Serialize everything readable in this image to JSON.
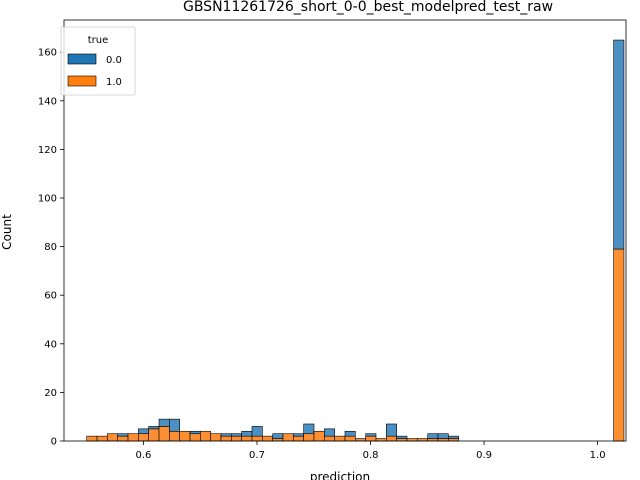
{
  "chart_data": {
    "type": "bar",
    "stacked": true,
    "title": "GBSN11261726_short_0-0_best_modelpred_test_raw",
    "xlabel": "prediction",
    "ylabel": "Count",
    "xlim": [
      0.53,
      1.025
    ],
    "ylim": [
      0,
      173.25
    ],
    "xticks": [
      0.6,
      0.7,
      0.8,
      0.9,
      1.0
    ],
    "xtick_labels": [
      "0.6",
      "0.7",
      "0.8",
      "0.9",
      "1.0"
    ],
    "yticks": [
      0,
      20,
      40,
      60,
      80,
      100,
      120,
      140,
      160
    ],
    "ytick_labels": [
      "0",
      "20",
      "40",
      "60",
      "80",
      "100",
      "120",
      "140",
      "160"
    ],
    "grid": false,
    "legend": {
      "title": "true",
      "placement": "top-left"
    },
    "bin_edges_start": 0.55,
    "bin_width": 0.0091,
    "series": [
      {
        "name": "1.0",
        "color": "#ff7f0e",
        "values": [
          2,
          2,
          3,
          2,
          3,
          3,
          5,
          6,
          4,
          4,
          3,
          4,
          3,
          2,
          2,
          2,
          2,
          2,
          1,
          3,
          2,
          3,
          4,
          2,
          2,
          2,
          1,
          2,
          1,
          2,
          1,
          1,
          1,
          1,
          1,
          1,
          0,
          0,
          0,
          0,
          0,
          0,
          0,
          0,
          0,
          0,
          0,
          0,
          0,
          0,
          0,
          79
        ]
      },
      {
        "name": "0.0",
        "color": "#1f77b4",
        "values": [
          0,
          0,
          0,
          1,
          0,
          2,
          1,
          3,
          5,
          0,
          1,
          0,
          0,
          1,
          1,
          2,
          4,
          0,
          2,
          0,
          1,
          4,
          0,
          3,
          0,
          2,
          0,
          1,
          0,
          5,
          1,
          0,
          0,
          2,
          2,
          1,
          0,
          0,
          0,
          0,
          0,
          0,
          0,
          0,
          0,
          0,
          0,
          0,
          0,
          0,
          0,
          86
        ]
      }
    ]
  }
}
